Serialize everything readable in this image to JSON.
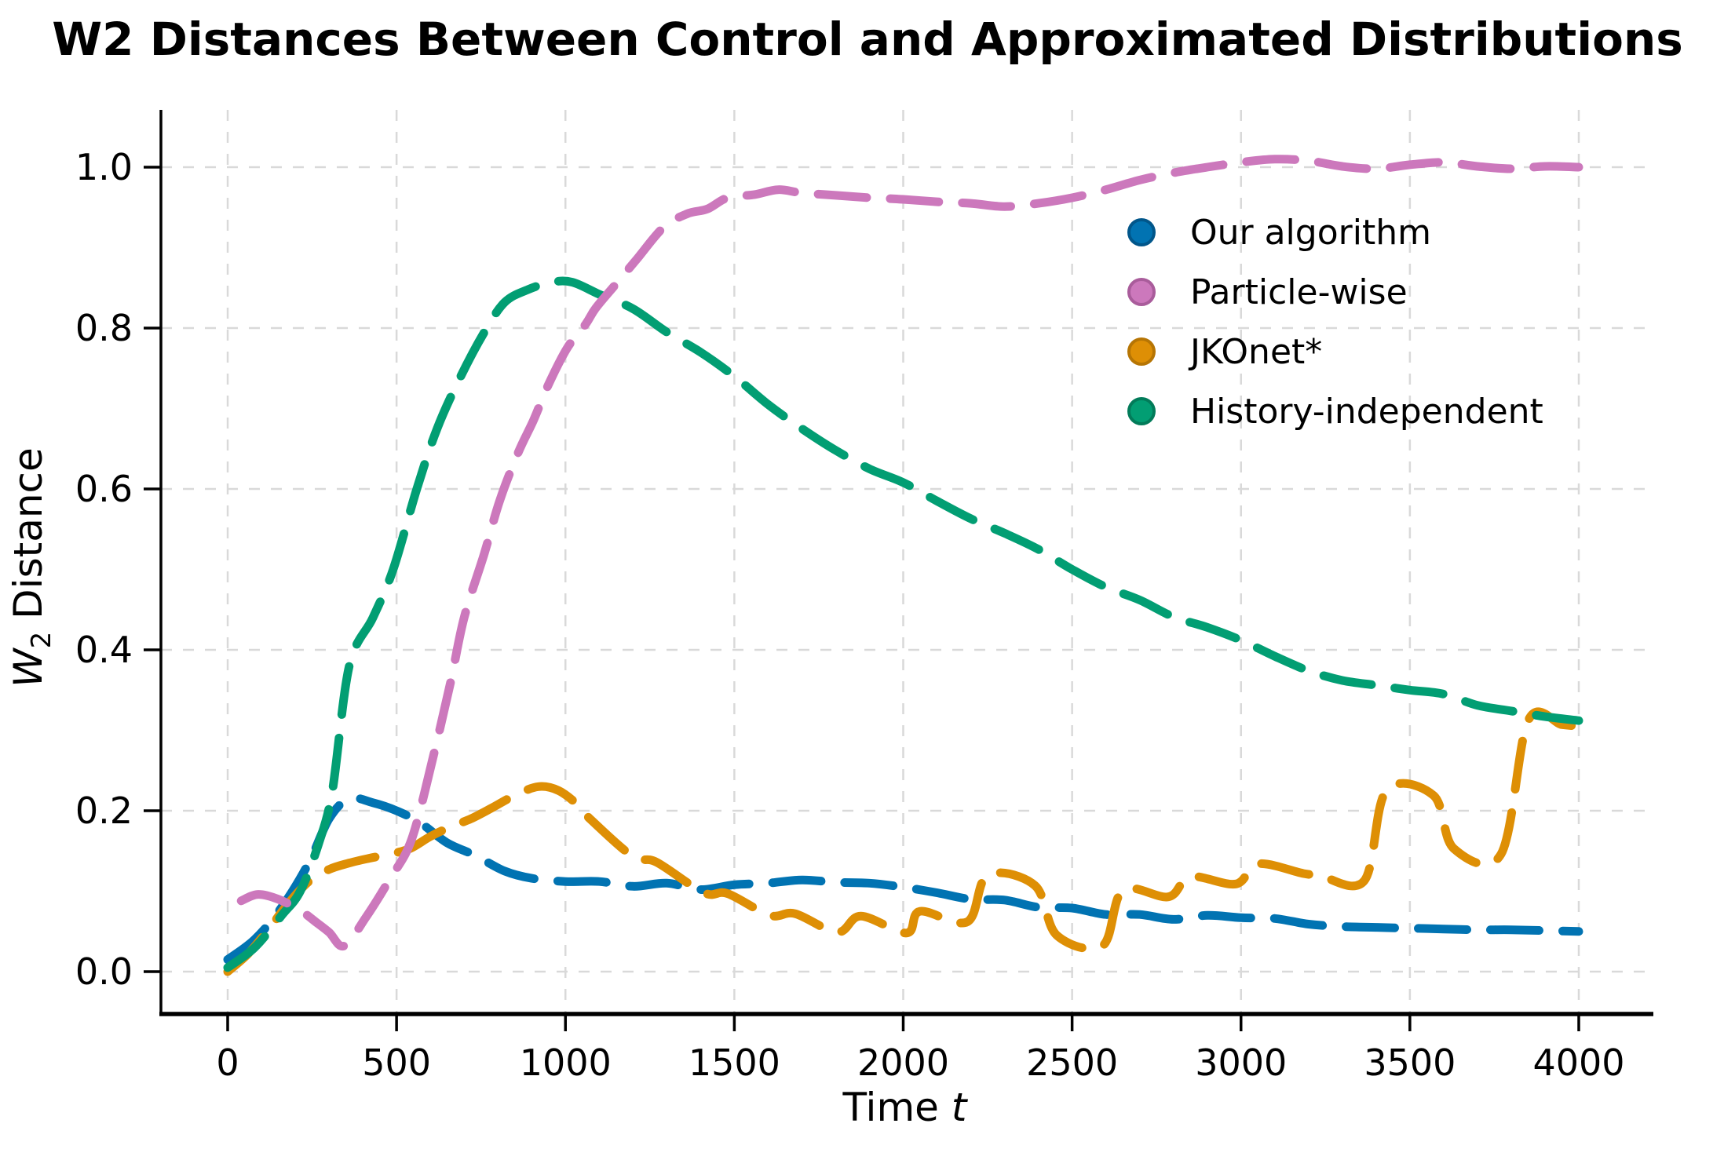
{
  "title": "W2 Distances Between Control and Approximated Distributions",
  "axes": {
    "x_label_main": "Time",
    "x_label_var": "t",
    "y_label_var": "W",
    "y_label_sub": "2",
    "y_label_rest": "Distance"
  },
  "chart_data": {
    "type": "line",
    "title": "W2 Distances Between Control and Approximated Distributions",
    "xlabel": "Time t",
    "ylabel": "W2 Distance",
    "xlim": [
      -200,
      4200
    ],
    "ylim": [
      -0.05,
      1.07
    ],
    "x_ticks": [
      0,
      500,
      1000,
      1500,
      2000,
      2500,
      3000,
      3500,
      4000
    ],
    "y_ticks": [
      0.0,
      0.2,
      0.4,
      0.6,
      0.8,
      1.0
    ],
    "grid": true,
    "grid_color": "#d9d9d9",
    "legend_position": "upper right inside",
    "line_style": "dashed",
    "linewidth": 11,
    "dash_pattern": [
      62,
      30
    ],
    "draw_order": [
      0,
      2,
      3,
      1
    ],
    "series": [
      {
        "name": "Our algorithm",
        "color": "#0173b2",
        "edge_color": "#01568a",
        "points": [
          [
            0,
            0.015
          ],
          [
            80,
            0.04
          ],
          [
            160,
            0.08
          ],
          [
            240,
            0.135
          ],
          [
            300,
            0.19
          ],
          [
            360,
            0.215
          ],
          [
            430,
            0.21
          ],
          [
            500,
            0.2
          ],
          [
            570,
            0.185
          ],
          [
            650,
            0.16
          ],
          [
            730,
            0.145
          ],
          [
            820,
            0.125
          ],
          [
            900,
            0.116
          ],
          [
            1000,
            0.112
          ],
          [
            1100,
            0.112
          ],
          [
            1200,
            0.106
          ],
          [
            1300,
            0.11
          ],
          [
            1400,
            0.102
          ],
          [
            1500,
            0.108
          ],
          [
            1600,
            0.11
          ],
          [
            1700,
            0.114
          ],
          [
            1800,
            0.111
          ],
          [
            1900,
            0.11
          ],
          [
            2000,
            0.105
          ],
          [
            2100,
            0.098
          ],
          [
            2200,
            0.09
          ],
          [
            2300,
            0.089
          ],
          [
            2400,
            0.08
          ],
          [
            2500,
            0.079
          ],
          [
            2600,
            0.071
          ],
          [
            2700,
            0.071
          ],
          [
            2800,
            0.065
          ],
          [
            2900,
            0.07
          ],
          [
            3000,
            0.067
          ],
          [
            3100,
            0.066
          ],
          [
            3200,
            0.059
          ],
          [
            3300,
            0.056
          ],
          [
            3400,
            0.055
          ],
          [
            3500,
            0.054
          ],
          [
            3600,
            0.053
          ],
          [
            3700,
            0.052
          ],
          [
            3800,
            0.052
          ],
          [
            3900,
            0.051
          ],
          [
            4000,
            0.05
          ]
        ]
      },
      {
        "name": "Particle-wise",
        "color": "#cc78bc",
        "edge_color": "#a95c9b",
        "points": [
          [
            40,
            0.088
          ],
          [
            90,
            0.096
          ],
          [
            150,
            0.09
          ],
          [
            215,
            0.076
          ],
          [
            260,
            0.062
          ],
          [
            300,
            0.049
          ],
          [
            345,
            0.032
          ],
          [
            410,
            0.068
          ],
          [
            480,
            0.115
          ],
          [
            545,
            0.165
          ],
          [
            610,
            0.27
          ],
          [
            660,
            0.36
          ],
          [
            700,
            0.44
          ],
          [
            760,
            0.52
          ],
          [
            805,
            0.585
          ],
          [
            860,
            0.645
          ],
          [
            905,
            0.685
          ],
          [
            950,
            0.73
          ],
          [
            1005,
            0.775
          ],
          [
            1060,
            0.805
          ],
          [
            1090,
            0.825
          ],
          [
            1150,
            0.855
          ],
          [
            1210,
            0.885
          ],
          [
            1290,
            0.925
          ],
          [
            1360,
            0.942
          ],
          [
            1420,
            0.948
          ],
          [
            1480,
            0.962
          ],
          [
            1560,
            0.966
          ],
          [
            1630,
            0.972
          ],
          [
            1700,
            0.968
          ],
          [
            1800,
            0.965
          ],
          [
            1900,
            0.962
          ],
          [
            2000,
            0.96
          ],
          [
            2100,
            0.957
          ],
          [
            2200,
            0.955
          ],
          [
            2300,
            0.951
          ],
          [
            2400,
            0.955
          ],
          [
            2500,
            0.962
          ],
          [
            2600,
            0.972
          ],
          [
            2700,
            0.984
          ],
          [
            2800,
            0.993
          ],
          [
            2900,
            1.0
          ],
          [
            3000,
            1.006
          ],
          [
            3100,
            1.01
          ],
          [
            3200,
            1.008
          ],
          [
            3300,
            1.001
          ],
          [
            3400,
            0.998
          ],
          [
            3500,
            1.003
          ],
          [
            3600,
            1.006
          ],
          [
            3700,
            1.001
          ],
          [
            3800,
            0.998
          ],
          [
            3900,
            1.001
          ],
          [
            4000,
            1.0
          ]
        ]
      },
      {
        "name": "JKOnet*",
        "color": "#de8f05",
        "edge_color": "#b67504",
        "points": [
          [
            0,
            0.0
          ],
          [
            60,
            0.022
          ],
          [
            120,
            0.052
          ],
          [
            180,
            0.085
          ],
          [
            240,
            0.112
          ],
          [
            300,
            0.127
          ],
          [
            360,
            0.135
          ],
          [
            420,
            0.141
          ],
          [
            480,
            0.146
          ],
          [
            540,
            0.153
          ],
          [
            600,
            0.168
          ],
          [
            660,
            0.18
          ],
          [
            720,
            0.19
          ],
          [
            780,
            0.203
          ],
          [
            850,
            0.219
          ],
          [
            920,
            0.23
          ],
          [
            980,
            0.225
          ],
          [
            1040,
            0.206
          ],
          [
            1075,
            0.189
          ],
          [
            1200,
            0.143
          ],
          [
            1270,
            0.136
          ],
          [
            1410,
            0.098
          ],
          [
            1480,
            0.097
          ],
          [
            1605,
            0.07
          ],
          [
            1680,
            0.072
          ],
          [
            1805,
            0.049
          ],
          [
            1875,
            0.069
          ],
          [
            2010,
            0.048
          ],
          [
            2050,
            0.075
          ],
          [
            2190,
            0.062
          ],
          [
            2250,
            0.12
          ],
          [
            2390,
            0.107
          ],
          [
            2455,
            0.045
          ],
          [
            2590,
            0.032
          ],
          [
            2650,
            0.101
          ],
          [
            2785,
            0.093
          ],
          [
            2850,
            0.118
          ],
          [
            2985,
            0.109
          ],
          [
            3050,
            0.134
          ],
          [
            3185,
            0.122
          ],
          [
            3230,
            0.12
          ],
          [
            3365,
            0.113
          ],
          [
            3430,
            0.225
          ],
          [
            3570,
            0.219
          ],
          [
            3630,
            0.153
          ],
          [
            3770,
            0.146
          ],
          [
            3850,
            0.312
          ],
          [
            3950,
            0.307
          ],
          [
            4000,
            0.305
          ]
        ]
      },
      {
        "name": "History-independent",
        "color": "#029e73",
        "edge_color": "#027b59",
        "points": [
          [
            0,
            0.005
          ],
          [
            80,
            0.03
          ],
          [
            160,
            0.07
          ],
          [
            215,
            0.1
          ],
          [
            270,
            0.16
          ],
          [
            310,
            0.225
          ],
          [
            360,
            0.38
          ],
          [
            430,
            0.44
          ],
          [
            490,
            0.5
          ],
          [
            560,
            0.6
          ],
          [
            620,
            0.675
          ],
          [
            690,
            0.74
          ],
          [
            760,
            0.795
          ],
          [
            820,
            0.832
          ],
          [
            890,
            0.848
          ],
          [
            960,
            0.857
          ],
          [
            1020,
            0.857
          ],
          [
            1100,
            0.842
          ],
          [
            1200,
            0.824
          ],
          [
            1300,
            0.795
          ],
          [
            1400,
            0.77
          ],
          [
            1500,
            0.74
          ],
          [
            1600,
            0.705
          ],
          [
            1700,
            0.675
          ],
          [
            1800,
            0.648
          ],
          [
            1900,
            0.625
          ],
          [
            2000,
            0.608
          ],
          [
            2100,
            0.585
          ],
          [
            2200,
            0.563
          ],
          [
            2300,
            0.545
          ],
          [
            2400,
            0.525
          ],
          [
            2500,
            0.5
          ],
          [
            2600,
            0.478
          ],
          [
            2700,
            0.462
          ],
          [
            2800,
            0.441
          ],
          [
            2900,
            0.428
          ],
          [
            3000,
            0.412
          ],
          [
            3100,
            0.392
          ],
          [
            3200,
            0.374
          ],
          [
            3300,
            0.362
          ],
          [
            3400,
            0.356
          ],
          [
            3500,
            0.35
          ],
          [
            3600,
            0.345
          ],
          [
            3700,
            0.331
          ],
          [
            3800,
            0.324
          ],
          [
            3900,
            0.317
          ],
          [
            4000,
            0.312
          ]
        ]
      }
    ]
  }
}
